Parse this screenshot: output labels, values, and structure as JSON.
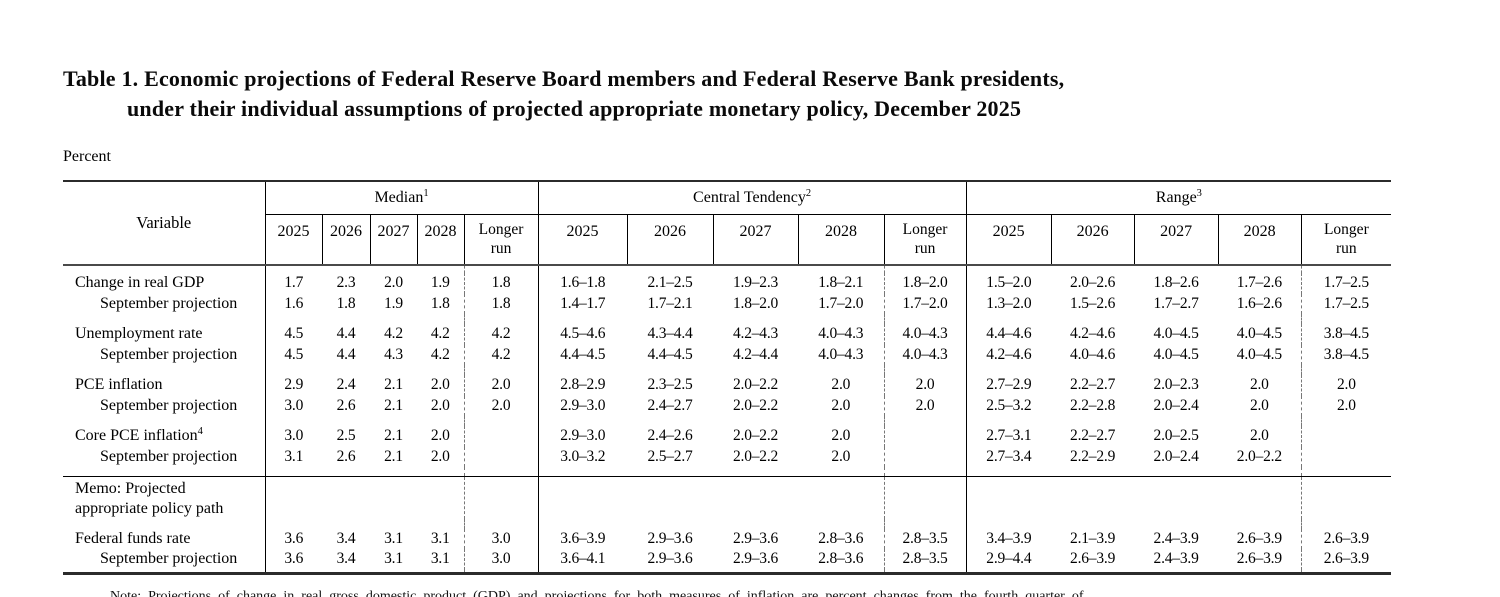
{
  "title": {
    "line1": "Table 1. Economic projections of Federal Reserve Board members and Federal Reserve Bank presidents,",
    "line2": "under their individual assumptions of projected appropriate monetary policy, December 2025"
  },
  "unit_label": "Percent",
  "note_clipped_first_line": "Note: Projections of change in real gross domestic product (GDP) and projections for both measures of inflation are percent changes from the fourth quarter of",
  "table": {
    "variable_header": "Variable",
    "groups": [
      {
        "label": "Median",
        "sup": "1"
      },
      {
        "label": "Central Tendency",
        "sup": "2"
      },
      {
        "label": "Range",
        "sup": "3"
      }
    ],
    "year_headers": [
      "2025",
      "2026",
      "2027",
      "2028"
    ],
    "longer_run": {
      "line1": "Longer",
      "line2": "run"
    },
    "rows": [
      {
        "type": "data",
        "label": "Change in real GDP",
        "indent": false,
        "median": [
          "1.7",
          "2.3",
          "2.0",
          "1.9",
          "1.8"
        ],
        "ct": [
          "1.6–1.8",
          "2.1–2.5",
          "1.9–2.3",
          "1.8–2.1",
          "1.8–2.0"
        ],
        "range": [
          "1.5–2.0",
          "2.0–2.6",
          "1.8–2.6",
          "1.7–2.6",
          "1.7–2.5"
        ]
      },
      {
        "type": "data",
        "label": "September projection",
        "indent": true,
        "median": [
          "1.6",
          "1.8",
          "1.9",
          "1.8",
          "1.8"
        ],
        "ct": [
          "1.4–1.7",
          "1.7–2.1",
          "1.8–2.0",
          "1.7–2.0",
          "1.7–2.0"
        ],
        "range": [
          "1.3–2.0",
          "1.5–2.6",
          "1.7–2.7",
          "1.6–2.6",
          "1.7–2.5"
        ]
      },
      {
        "type": "data",
        "label": "Unemployment rate",
        "indent": false,
        "median": [
          "4.5",
          "4.4",
          "4.2",
          "4.2",
          "4.2"
        ],
        "ct": [
          "4.5–4.6",
          "4.3–4.4",
          "4.2–4.3",
          "4.0–4.3",
          "4.0–4.3"
        ],
        "range": [
          "4.4–4.6",
          "4.2–4.6",
          "4.0–4.5",
          "4.0–4.5",
          "3.8–4.5"
        ]
      },
      {
        "type": "data",
        "label": "September projection",
        "indent": true,
        "median": [
          "4.5",
          "4.4",
          "4.3",
          "4.2",
          "4.2"
        ],
        "ct": [
          "4.4–4.5",
          "4.4–4.5",
          "4.2–4.4",
          "4.0–4.3",
          "4.0–4.3"
        ],
        "range": [
          "4.2–4.6",
          "4.0–4.6",
          "4.0–4.5",
          "4.0–4.5",
          "3.8–4.5"
        ]
      },
      {
        "type": "data",
        "label": "PCE inflation",
        "indent": false,
        "median": [
          "2.9",
          "2.4",
          "2.1",
          "2.0",
          "2.0"
        ],
        "ct": [
          "2.8–2.9",
          "2.3–2.5",
          "2.0–2.2",
          "2.0",
          "2.0"
        ],
        "range": [
          "2.7–2.9",
          "2.2–2.7",
          "2.0–2.3",
          "2.0",
          "2.0"
        ]
      },
      {
        "type": "data",
        "label": "September projection",
        "indent": true,
        "median": [
          "3.0",
          "2.6",
          "2.1",
          "2.0",
          "2.0"
        ],
        "ct": [
          "2.9–3.0",
          "2.4–2.7",
          "2.0–2.2",
          "2.0",
          "2.0"
        ],
        "range": [
          "2.5–3.2",
          "2.2–2.8",
          "2.0–2.4",
          "2.0",
          "2.0"
        ]
      },
      {
        "type": "data",
        "label": "Core PCE inflation",
        "sup": "4",
        "indent": false,
        "median": [
          "3.0",
          "2.5",
          "2.1",
          "2.0",
          ""
        ],
        "ct": [
          "2.9–3.0",
          "2.4–2.6",
          "2.0–2.2",
          "2.0",
          ""
        ],
        "range": [
          "2.7–3.1",
          "2.2–2.7",
          "2.0–2.5",
          "2.0",
          ""
        ]
      },
      {
        "type": "data",
        "label": "September projection",
        "indent": true,
        "median": [
          "3.1",
          "2.6",
          "2.1",
          "2.0",
          ""
        ],
        "ct": [
          "3.0–3.2",
          "2.5–2.7",
          "2.0–2.2",
          "2.0",
          ""
        ],
        "range": [
          "2.7–3.4",
          "2.2–2.9",
          "2.0–2.4",
          "2.0–2.2",
          ""
        ]
      },
      {
        "type": "memo",
        "line1": "Memo: Projected",
        "line2": "appropriate policy path"
      },
      {
        "type": "data",
        "label": "Federal funds rate",
        "indent": false,
        "median": [
          "3.6",
          "3.4",
          "3.1",
          "3.1",
          "3.0"
        ],
        "ct": [
          "3.6–3.9",
          "2.9–3.6",
          "2.9–3.6",
          "2.8–3.6",
          "2.8–3.5"
        ],
        "range": [
          "3.4–3.9",
          "2.1–3.9",
          "2.4–3.9",
          "2.6–3.9",
          "2.6–3.9"
        ]
      },
      {
        "type": "data",
        "label": "September projection",
        "indent": true,
        "median": [
          "3.6",
          "3.4",
          "3.1",
          "3.1",
          "3.0"
        ],
        "ct": [
          "3.6–4.1",
          "2.9–3.6",
          "2.9–3.6",
          "2.8–3.6",
          "2.8–3.5"
        ],
        "range": [
          "2.9–4.4",
          "2.6–3.9",
          "2.4–3.9",
          "2.6–3.9",
          "2.6–3.9"
        ]
      }
    ]
  }
}
